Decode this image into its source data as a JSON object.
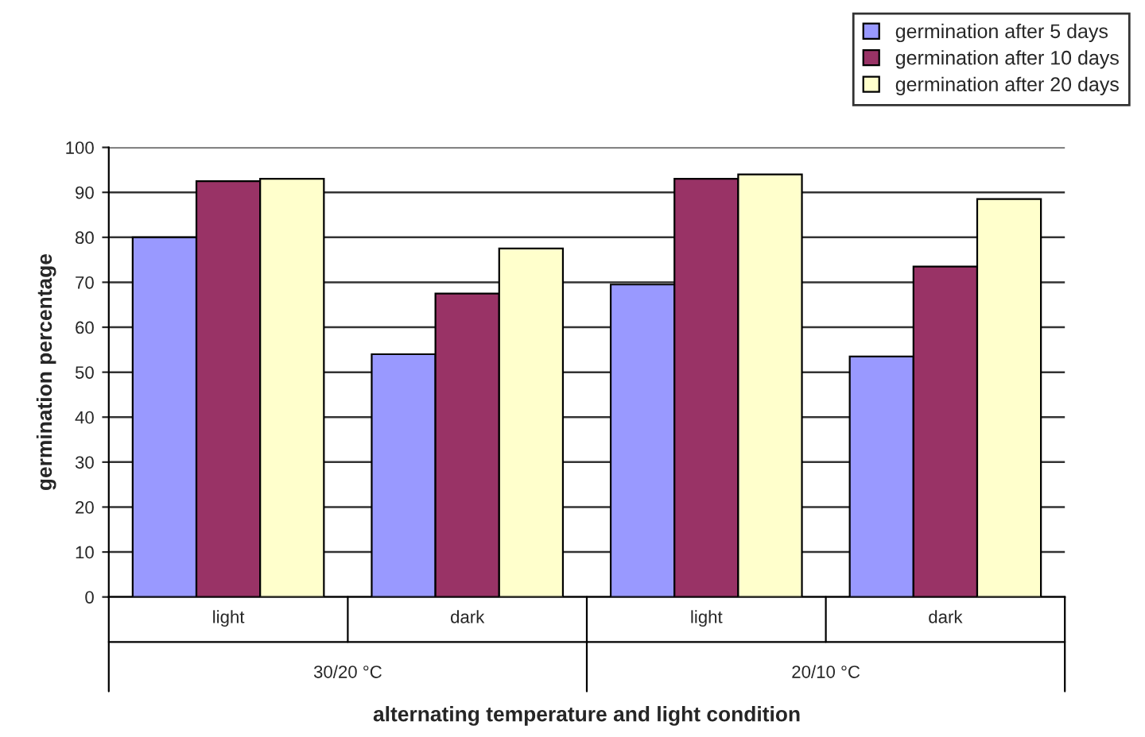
{
  "chart_data": {
    "type": "bar",
    "xlabel": "alternating temperature and light condition",
    "ylabel": "germination percentage",
    "categories": [
      "light",
      "dark",
      "light",
      "dark"
    ],
    "series": [
      {
        "name": "germination after 5 days",
        "color": "#9999ff",
        "values": [
          80,
          54,
          69.5,
          53.5
        ]
      },
      {
        "name": "germination after 10 days",
        "color": "#993366",
        "values": [
          92.5,
          67.5,
          93,
          73.5
        ]
      },
      {
        "name": "germination after 20 days",
        "color": "#ffffcc",
        "values": [
          93,
          77.5,
          94,
          88.5
        ]
      }
    ],
    "annotations": [
      "30/20 °C",
      "20/10 °C"
    ],
    "ylim": [
      0,
      100
    ],
    "yticks": [
      0,
      10,
      20,
      30,
      40,
      50,
      60,
      70,
      80,
      90,
      100
    ],
    "grid": "y",
    "legend": "top right"
  }
}
